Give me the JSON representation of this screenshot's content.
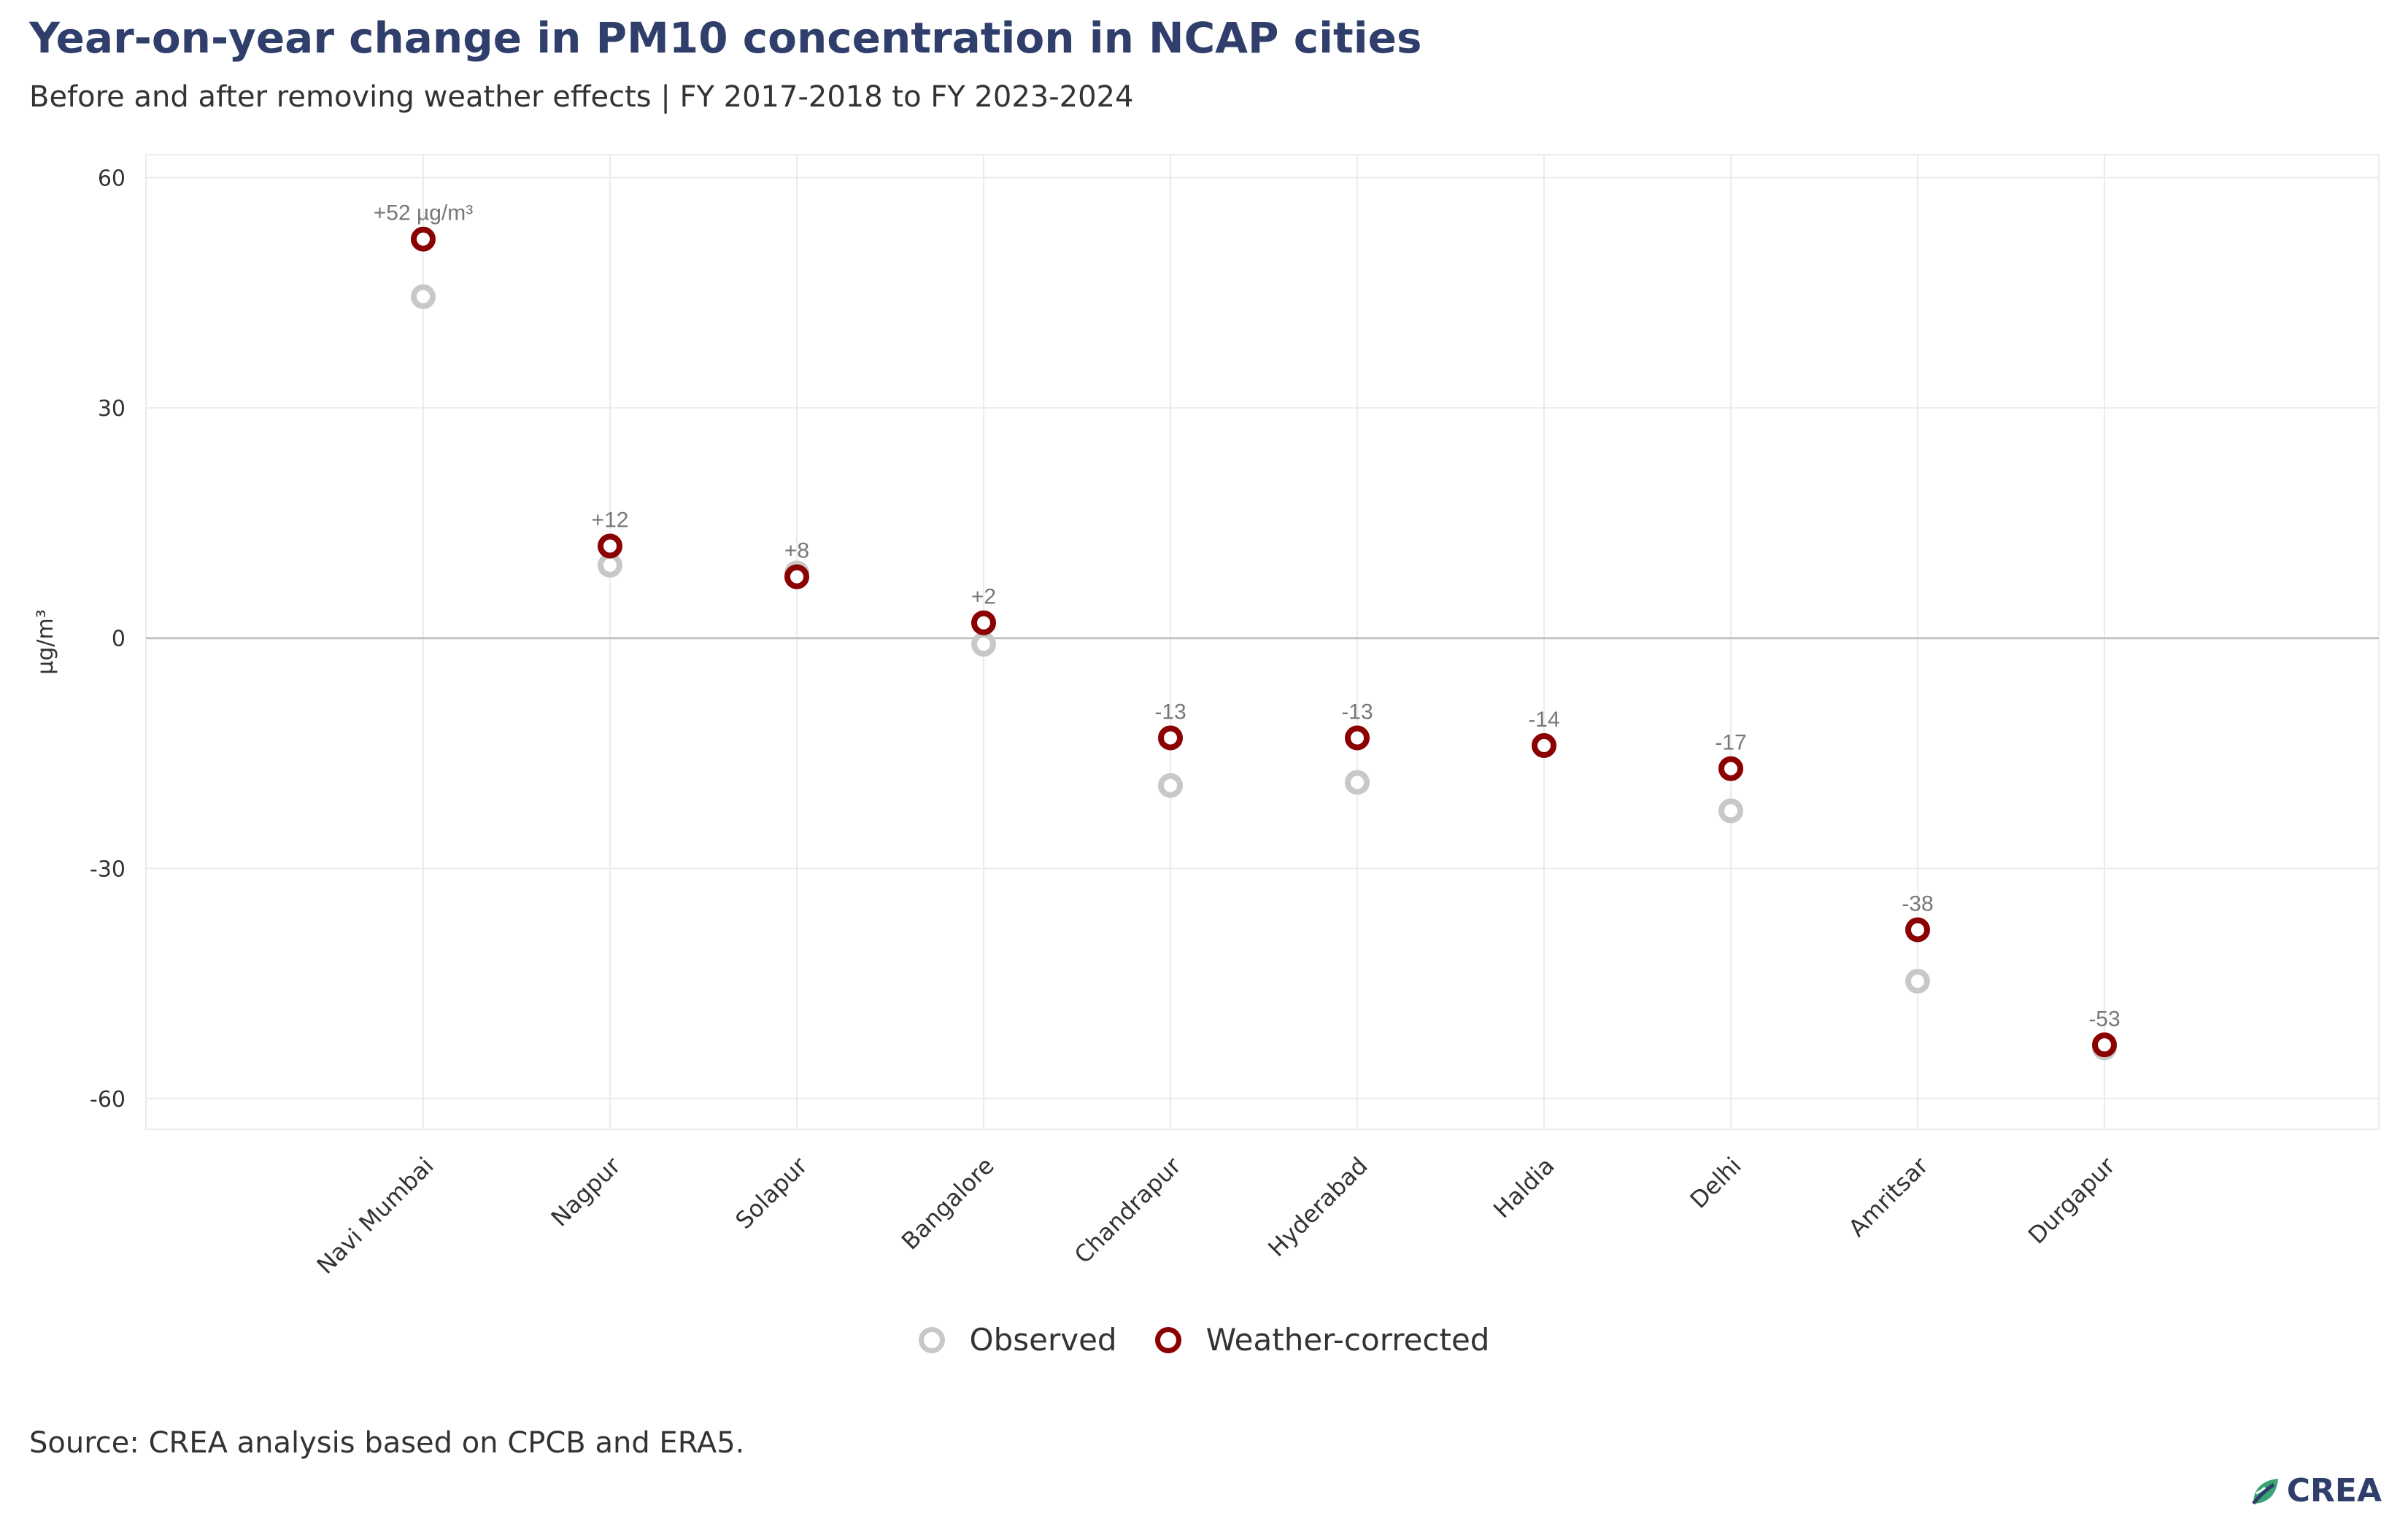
{
  "title": "Year-on-year change in PM10 concentration in NCAP cities",
  "subtitle": "Before and after removing weather effects | FY 2017-2018 to FY 2023-2024",
  "source": "Source: CREA analysis based on CPCB and ERA5.",
  "brand": "CREA",
  "colors": {
    "observed": "#c8c8c8",
    "weather_corrected": "#8b0000",
    "title": "#2f3e6b",
    "grid": "#ebebeb",
    "zero_line": "#c4c4c4",
    "label": "#777777"
  },
  "chart_data": {
    "type": "scatter",
    "title": "Year-on-year change in PM10 concentration in NCAP cities",
    "subtitle": "Before and after removing weather effects | FY 2017-2018 to FY 2023-2024",
    "ylabel": "µg/m³",
    "ylim": [
      -64,
      63
    ],
    "yticks": [
      60,
      30,
      0,
      -30,
      -60
    ],
    "ytick_labels": [
      "60",
      "30",
      "0",
      "-30",
      "-60"
    ],
    "grid": true,
    "legend_position": "bottom",
    "categories": [
      "Navi Mumbai",
      "Nagpur",
      "Solapur",
      "Bangalore",
      "Chandrapur",
      "Hyderabad",
      "Haldia",
      "Delhi",
      "Amritsar",
      "Durgapur"
    ],
    "series": [
      {
        "name": "Observed",
        "values": [
          44.5,
          9.5,
          8.5,
          -0.8,
          -19.2,
          -18.8,
          -14,
          -22.5,
          -44.7,
          -53.4
        ]
      },
      {
        "name": "Weather-corrected",
        "values": [
          52,
          12,
          8,
          2,
          -13,
          -13,
          -14,
          -17,
          -38,
          -53
        ]
      }
    ],
    "data_labels": [
      "+52 µg/m³",
      "+12",
      "+8",
      "+2",
      "-13",
      "-13",
      "-14",
      "-17",
      "-38",
      "-53"
    ]
  }
}
